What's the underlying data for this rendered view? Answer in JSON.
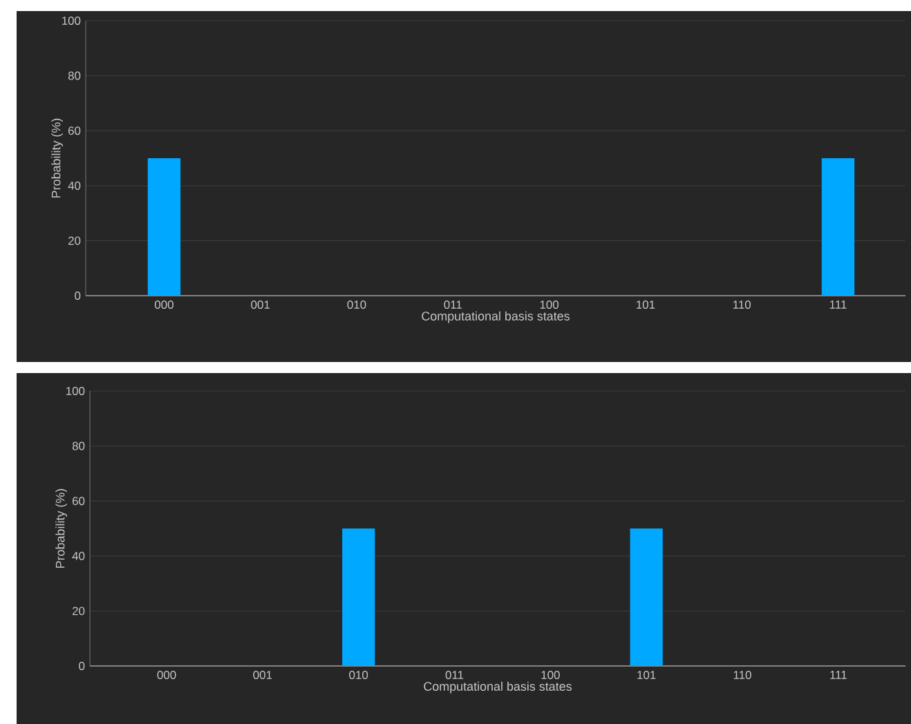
{
  "chart_data": [
    {
      "type": "bar",
      "xlabel": "Computational basis states",
      "ylabel": "Probability (%)",
      "categories": [
        "000",
        "001",
        "010",
        "011",
        "100",
        "101",
        "110",
        "111"
      ],
      "values": [
        50,
        0,
        0,
        0,
        0,
        0,
        0,
        50
      ],
      "color": "#00a8ff",
      "ylim": [
        0,
        100
      ],
      "yticks": [
        0,
        20,
        40,
        60,
        80,
        100
      ],
      "grid": "y"
    },
    {
      "type": "bar",
      "xlabel": "Computational basis states",
      "ylabel": "Probability (%)",
      "categories": [
        "000",
        "001",
        "010",
        "011",
        "100",
        "101",
        "110",
        "111"
      ],
      "values": [
        0,
        0,
        50,
        0,
        0,
        50,
        0,
        0
      ],
      "color": "#00a8ff",
      "ylim": [
        0,
        100
      ],
      "yticks": [
        0,
        20,
        40,
        60,
        80,
        100
      ],
      "grid": "y"
    }
  ]
}
